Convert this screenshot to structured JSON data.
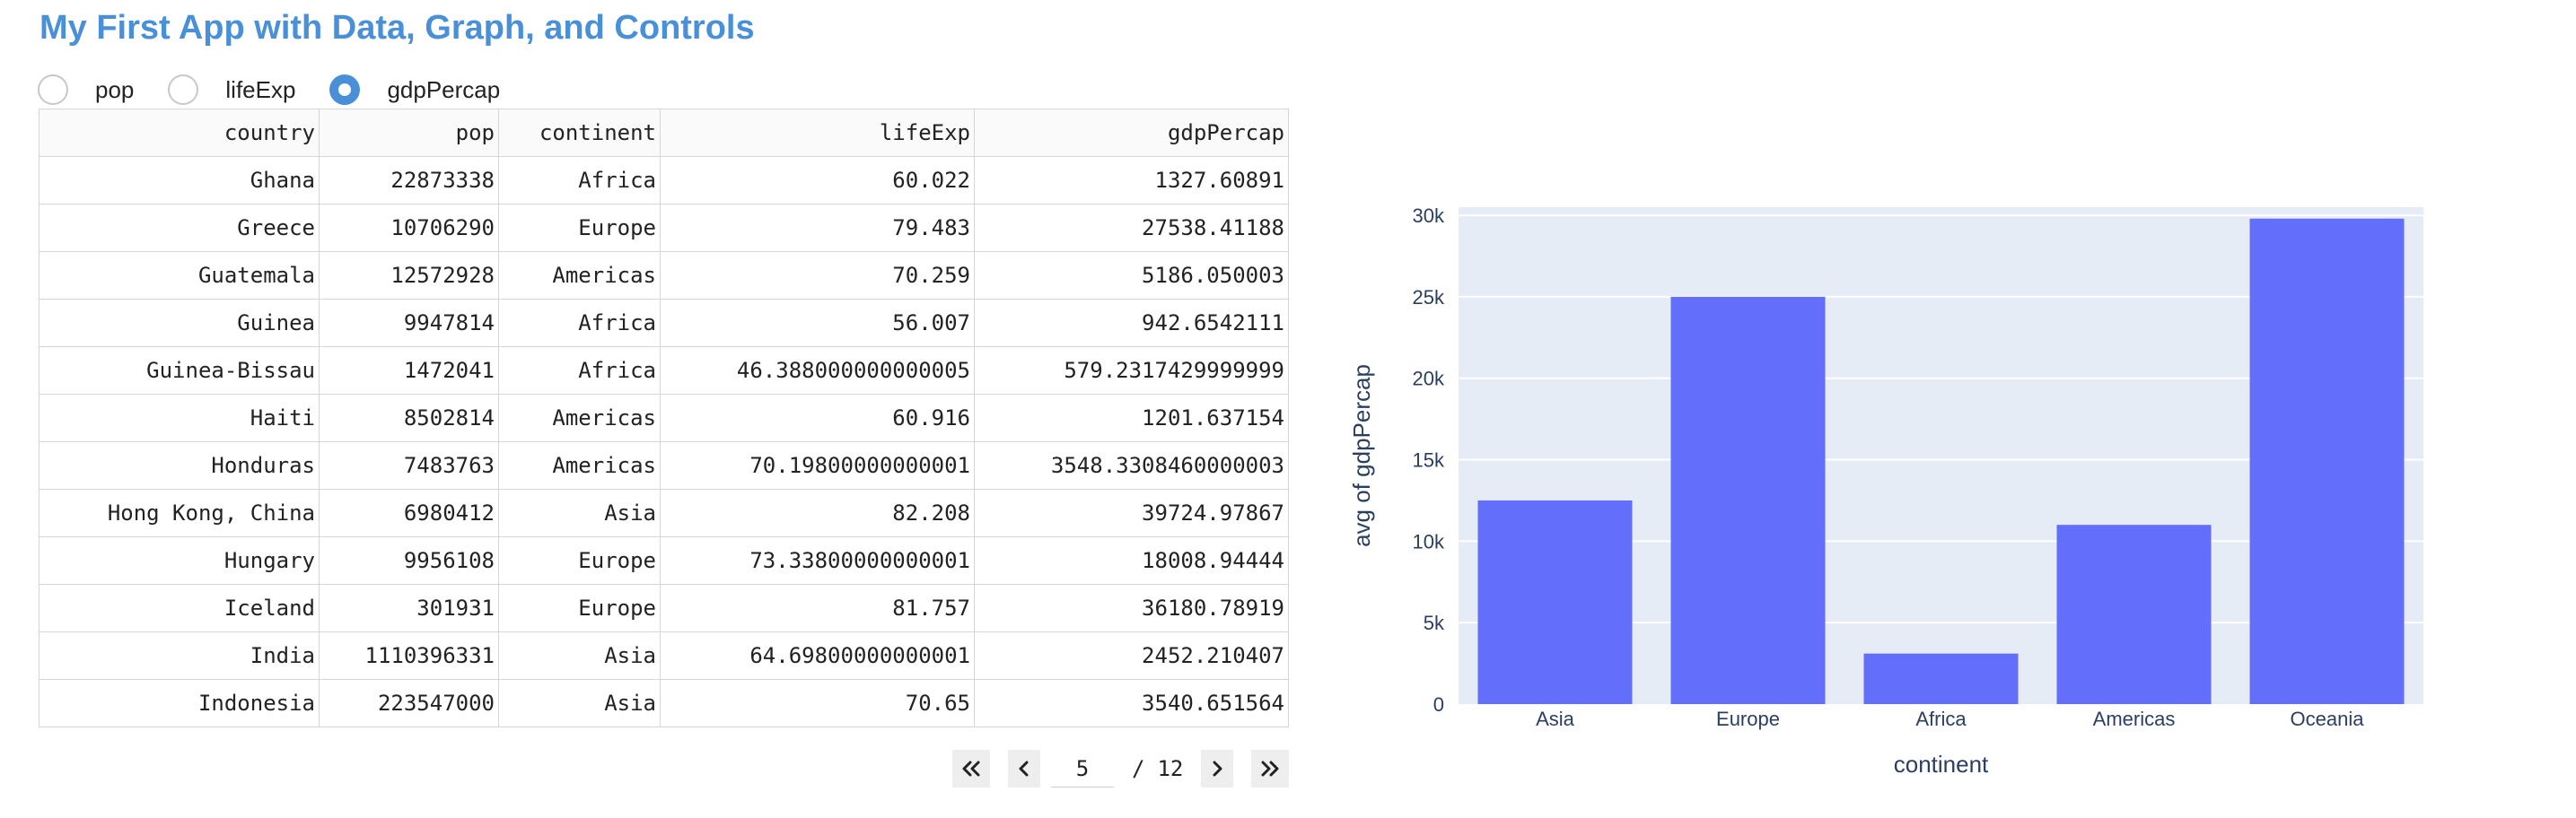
{
  "app": {
    "title": "My First App with Data, Graph, and Controls"
  },
  "controls": {
    "options": [
      {
        "label": "pop",
        "checked": false
      },
      {
        "label": "lifeExp",
        "checked": false
      },
      {
        "label": "gdpPercap",
        "checked": true
      }
    ]
  },
  "table": {
    "columns": [
      "country",
      "pop",
      "continent",
      "lifeExp",
      "gdpPercap"
    ],
    "rows": [
      [
        "Ghana",
        "22873338",
        "Africa",
        "60.022",
        "1327.60891"
      ],
      [
        "Greece",
        "10706290",
        "Europe",
        "79.483",
        "27538.41188"
      ],
      [
        "Guatemala",
        "12572928",
        "Americas",
        "70.259",
        "5186.050003"
      ],
      [
        "Guinea",
        "9947814",
        "Africa",
        "56.007",
        "942.6542111"
      ],
      [
        "Guinea-Bissau",
        "1472041",
        "Africa",
        "46.388000000000005",
        "579.2317429999999"
      ],
      [
        "Haiti",
        "8502814",
        "Americas",
        "60.916",
        "1201.637154"
      ],
      [
        "Honduras",
        "7483763",
        "Americas",
        "70.19800000000001",
        "3548.3308460000003"
      ],
      [
        "Hong Kong, China",
        "6980412",
        "Asia",
        "82.208",
        "39724.97867"
      ],
      [
        "Hungary",
        "9956108",
        "Europe",
        "73.33800000000001",
        "18008.94444"
      ],
      [
        "Iceland",
        "301931",
        "Europe",
        "81.757",
        "36180.78919"
      ],
      [
        "India",
        "1110396331",
        "Asia",
        "64.69800000000001",
        "2452.210407"
      ],
      [
        "Indonesia",
        "223547000",
        "Asia",
        "70.65",
        "3540.651564"
      ]
    ]
  },
  "pagination": {
    "current_page": "5",
    "separator": "/",
    "total_pages": "12"
  },
  "chart_data": {
    "type": "bar",
    "categories": [
      "Asia",
      "Europe",
      "Africa",
      "Americas",
      "Oceania"
    ],
    "values": [
      12500,
      25000,
      3100,
      11000,
      29800
    ],
    "xlabel": "continent",
    "ylabel": "avg of gdpPercap",
    "ylim": [
      0,
      30500
    ],
    "yticks": [
      0,
      5000,
      10000,
      15000,
      20000,
      25000,
      30000
    ],
    "ytick_labels": [
      "0",
      "5k",
      "10k",
      "15k",
      "20k",
      "25k",
      "30k"
    ],
    "bar_color": "#636efa",
    "plot_bg": "#e5ecf6",
    "grid": true
  },
  "colors": {
    "accent": "#4a90d9"
  }
}
